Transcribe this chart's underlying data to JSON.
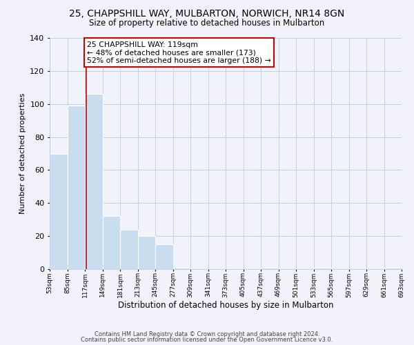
{
  "title": "25, CHAPPSHILL WAY, MULBARTON, NORWICH, NR14 8GN",
  "subtitle": "Size of property relative to detached houses in Mulbarton",
  "xlabel": "Distribution of detached houses by size in Mulbarton",
  "ylabel": "Number of detached properties",
  "bar_edges": [
    53,
    85,
    117,
    149,
    181,
    213,
    245,
    277,
    309,
    341,
    373,
    405,
    437,
    469,
    501,
    533,
    565,
    597,
    629,
    661,
    693
  ],
  "bar_heights": [
    70,
    99,
    106,
    32,
    24,
    20,
    15,
    1,
    0,
    0,
    0,
    0,
    1,
    0,
    0,
    1,
    0,
    0,
    0,
    1
  ],
  "bar_color": "#c8ddef",
  "bar_edge_color": "#ffffff",
  "property_line_x": 119,
  "property_line_color": "#cc0000",
  "annotation_text": "25 CHAPPSHILL WAY: 119sqm\n← 48% of detached houses are smaller (173)\n52% of semi-detached houses are larger (188) →",
  "annotation_box_color": "#ffffff",
  "annotation_box_edge": "#cc0000",
  "ylim": [
    0,
    140
  ],
  "yticks": [
    0,
    20,
    40,
    60,
    80,
    100,
    120,
    140
  ],
  "tick_labels": [
    "53sqm",
    "85sqm",
    "117sqm",
    "149sqm",
    "181sqm",
    "213sqm",
    "245sqm",
    "277sqm",
    "309sqm",
    "341sqm",
    "373sqm",
    "405sqm",
    "437sqm",
    "469sqm",
    "501sqm",
    "533sqm",
    "565sqm",
    "597sqm",
    "629sqm",
    "661sqm",
    "693sqm"
  ],
  "footer_line1": "Contains HM Land Registry data © Crown copyright and database right 2024.",
  "footer_line2": "Contains public sector information licensed under the Open Government Licence v3.0.",
  "background_color": "#f0f4fa",
  "grid_color": "#c0c8d8"
}
